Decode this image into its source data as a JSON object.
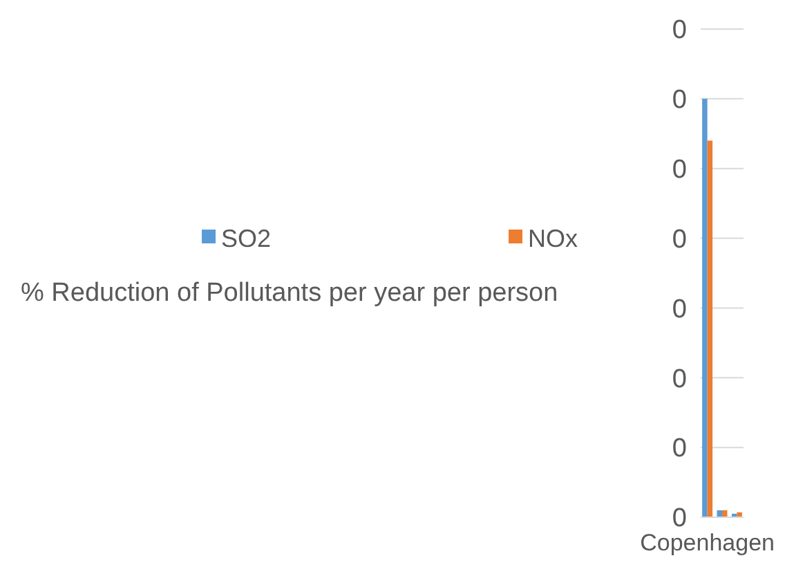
{
  "chart_data": {
    "type": "bar",
    "title": "% Reduction of Pollutants per year per person",
    "categories": [
      "Copenhagen",
      null,
      null
    ],
    "series": [
      {
        "name": "SO2",
        "color": "#5b9bd5",
        "values": [
          0.3,
          0.005,
          0.0025
        ]
      },
      {
        "name": "NOx",
        "color": "#ed7d31",
        "values": [
          0.27,
          0.005,
          0.0035
        ]
      }
    ],
    "ylim": [
      0,
      0.35
    ],
    "yticks": [
      {
        "value": 0,
        "label": "0"
      },
      {
        "value": 0.05,
        "label": "0"
      },
      {
        "value": 0.1,
        "label": "0"
      },
      {
        "value": 0.15,
        "label": "0"
      },
      {
        "value": 0.2,
        "label": "0"
      },
      {
        "value": 0.25,
        "label": "0"
      },
      {
        "value": 0.3,
        "label": "0"
      },
      {
        "value": 0.35,
        "label": "0"
      }
    ],
    "grid": "y",
    "legend": "left"
  }
}
